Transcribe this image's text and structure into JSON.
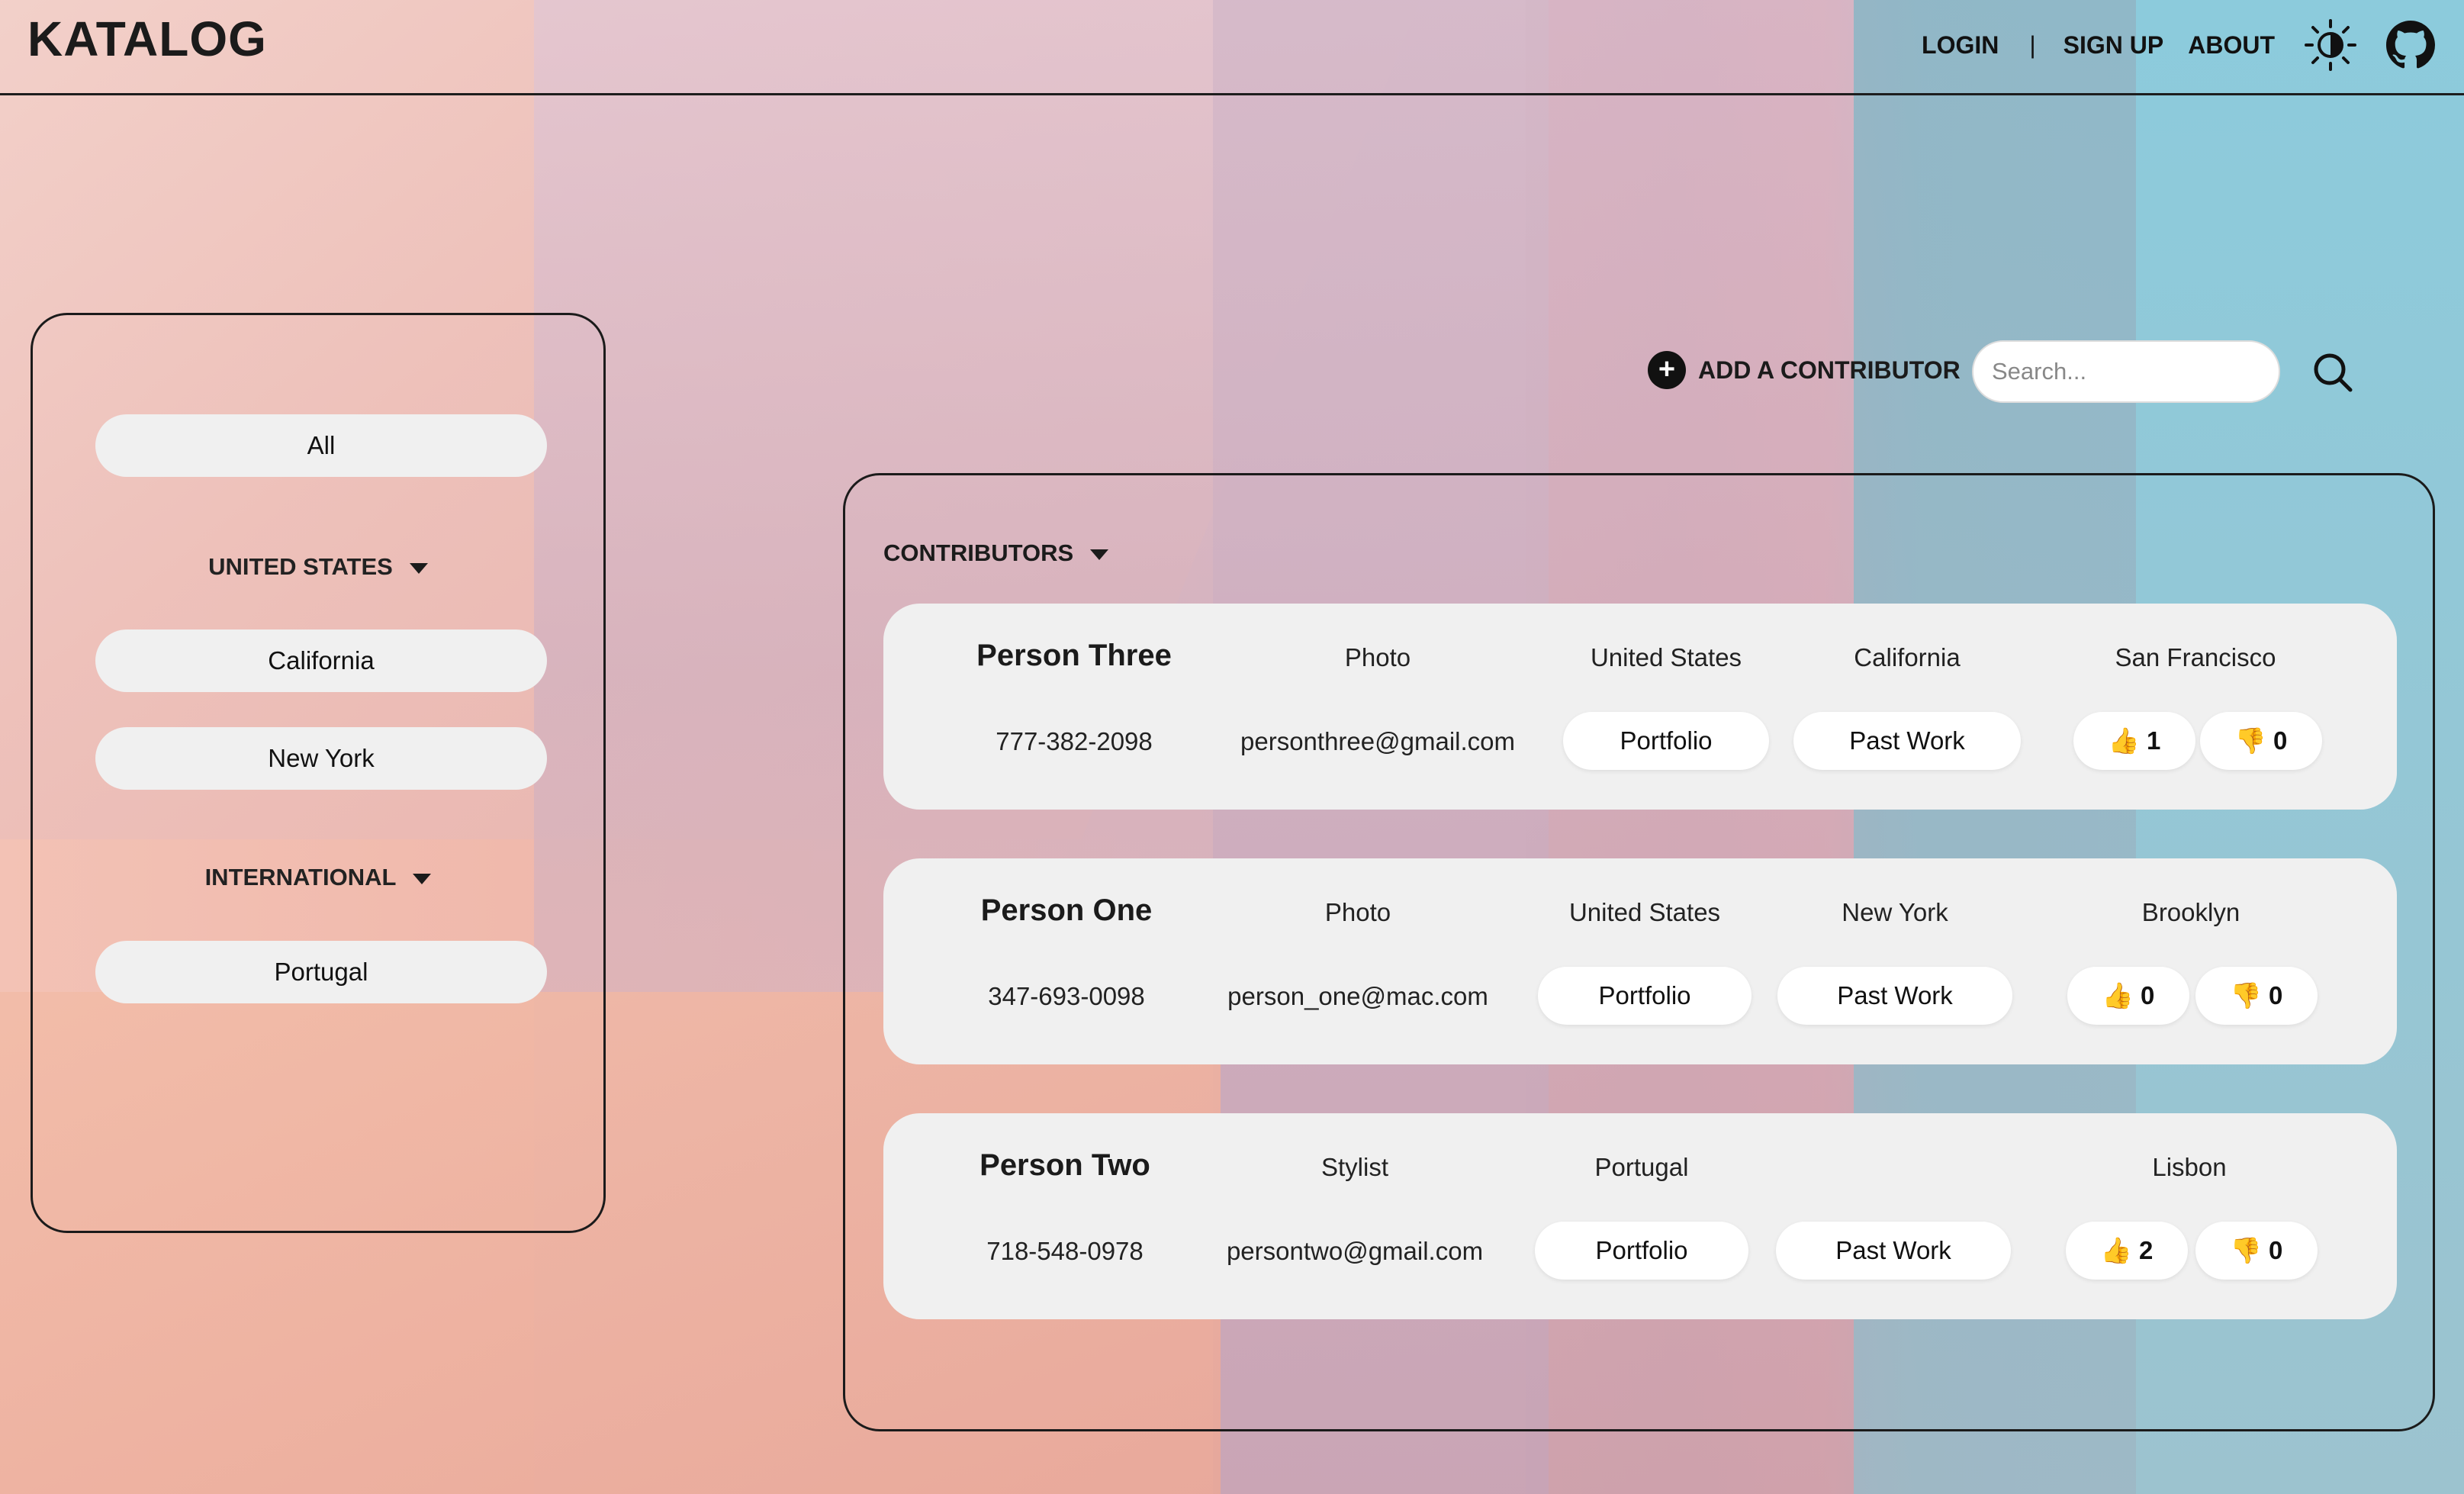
{
  "header": {
    "logo": "KATALOG",
    "nav": {
      "login": "LOGIN",
      "separator": "|",
      "signup": "SIGN UP",
      "about": "ABOUT"
    },
    "icons": [
      "theme-toggle-icon",
      "github-icon"
    ]
  },
  "sidebar": {
    "all_label": "All",
    "groups": [
      {
        "label": "UNITED STATES",
        "items": [
          "California",
          "New York"
        ]
      },
      {
        "label": "INTERNATIONAL",
        "items": [
          "Portugal"
        ]
      }
    ]
  },
  "toolbar": {
    "add_icon": "+",
    "add_label": "ADD A CONTRIBUTOR",
    "search_placeholder": "Search..."
  },
  "contributors": {
    "title": "CONTRIBUTORS",
    "cards": [
      {
        "name": "Person Three",
        "role": "Photo",
        "country": "United States",
        "state": "California",
        "city": "San Francisco",
        "phone": "777-382-2098",
        "email": "personthree@gmail.com",
        "portfolio": "Portfolio",
        "past_work": "Past Work",
        "upvote": "👍 1",
        "downvote": "👎 0"
      },
      {
        "name": "Person One",
        "role": "Photo",
        "country": "United States",
        "state": "New York",
        "city": "Brooklyn",
        "phone": "347-693-0098",
        "email": "person_one@mac.com",
        "portfolio": "Portfolio",
        "past_work": "Past Work",
        "upvote": "👍 0",
        "downvote": "👎 0"
      },
      {
        "name": "Person Two",
        "role": "Stylist",
        "country": "Portugal",
        "state": "",
        "city": "Lisbon",
        "phone": "718-548-0978",
        "email": "persontwo@gmail.com",
        "portfolio": "Portfolio",
        "past_work": "Past Work",
        "upvote": "👍 2",
        "downvote": "👎 0"
      }
    ]
  }
}
